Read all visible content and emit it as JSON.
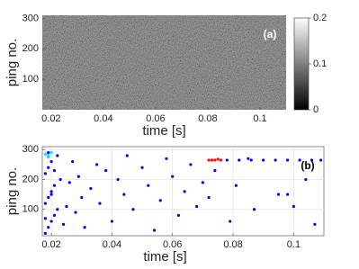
{
  "chart_data": [
    {
      "type": "image",
      "panel_label": "(a)",
      "xlabel": "time [s]",
      "ylabel": "ping no.",
      "xlim": [
        0.0166,
        0.11
      ],
      "xticks": [
        0.02,
        0.04,
        0.06,
        0.08,
        0.1
      ],
      "ylim": [
        0,
        310
      ],
      "yticks": [
        100,
        200,
        300
      ],
      "colorbar": {
        "lim": [
          0,
          0.2
        ],
        "ticks": [
          0,
          0.1,
          0.2
        ]
      }
    },
    {
      "type": "scatter",
      "panel_label": "(b)",
      "xlabel": "time [s]",
      "ylabel": "ping no.",
      "xlim": [
        0.017,
        0.11
      ],
      "xticks": [
        0.02,
        0.04,
        0.06,
        0.08,
        0.1
      ],
      "ylim": [
        12,
        310
      ],
      "yticks": [
        100,
        200,
        300
      ],
      "grid": true,
      "series": [
        {
          "color": "#0000ff",
          "x": [
            0.018,
            0.019,
            0.02,
            0.021,
            0.022,
            0.018,
            0.019,
            0.02,
            0.021,
            0.023,
            0.018,
            0.019,
            0.02,
            0.022,
            0.024,
            0.018,
            0.02,
            0.021,
            0.019,
            0.025,
            0.026,
            0.027,
            0.028,
            0.029,
            0.03,
            0.031,
            0.033,
            0.035,
            0.036,
            0.038,
            0.04,
            0.042,
            0.044,
            0.045,
            0.047,
            0.05,
            0.052,
            0.054,
            0.056,
            0.058,
            0.06,
            0.062,
            0.064,
            0.066,
            0.068,
            0.07,
            0.072,
            0.074,
            0.079,
            0.081,
            0.085,
            0.087,
            0.095,
            0.098,
            0.1,
            0.104,
            0.107
          ],
          "y": [
            20,
            40,
            60,
            80,
            100,
            120,
            140,
            160,
            180,
            200,
            220,
            240,
            260,
            280,
            50,
            70,
            150,
            230,
            290,
            110,
            190,
            260,
            90,
            210,
            140,
            40,
            170,
            250,
            120,
            230,
            60,
            200,
            150,
            280,
            100,
            240,
            180,
            30,
            130,
            270,
            210,
            80,
            160,
            250,
            110,
            190,
            140,
            230,
            60,
            180,
            270,
            100,
            150,
            150,
            110,
            200,
            50
          ]
        },
        {
          "color": "#00e5ff",
          "x": [
            0.018,
            0.019,
            0.02,
            0.019
          ],
          "y": [
            285,
            280,
            290,
            275
          ]
        },
        {
          "color": "#ff0000",
          "x": [
            0.072,
            0.073,
            0.074,
            0.075,
            0.076
          ],
          "y": [
            265,
            265,
            265,
            268,
            265
          ]
        },
        {
          "color": "#0000ff",
          "x": [
            0.078,
            0.082,
            0.086,
            0.09,
            0.094,
            0.098,
            0.102,
            0.106,
            0.109
          ],
          "y": [
            265,
            265,
            265,
            265,
            265,
            265,
            265,
            265,
            265
          ]
        }
      ]
    }
  ]
}
